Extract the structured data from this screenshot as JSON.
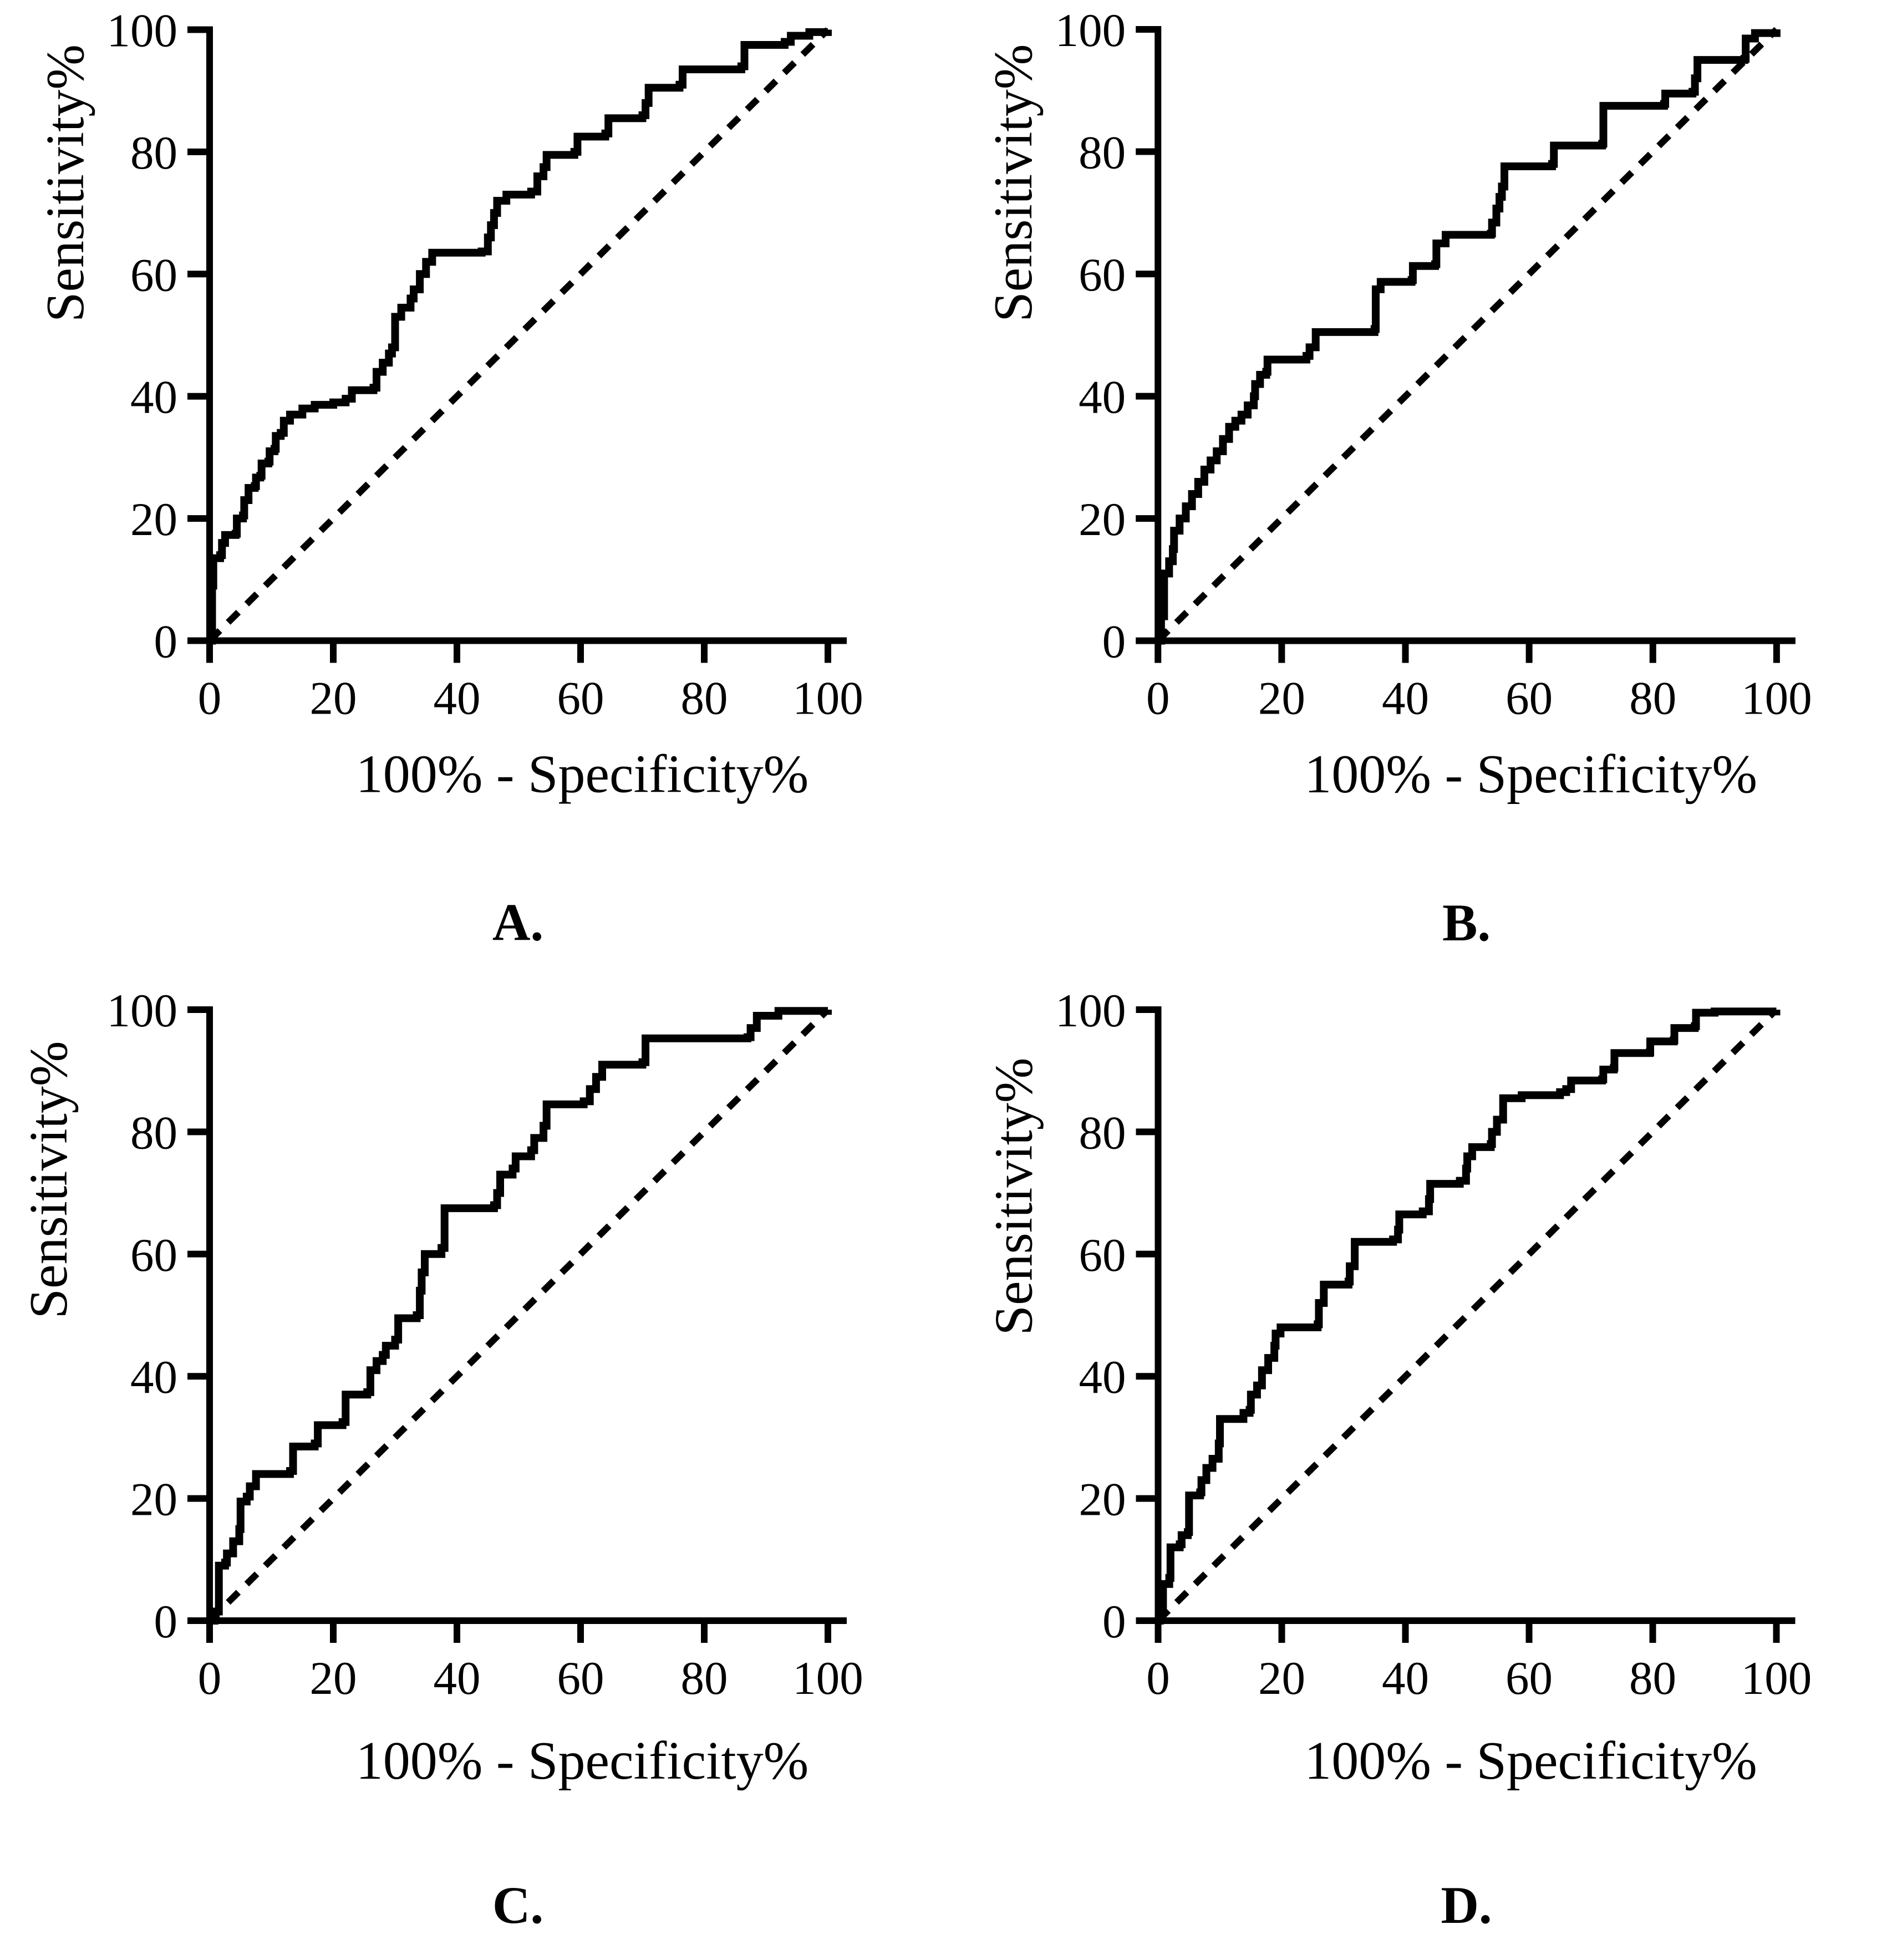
{
  "figure": {
    "background": "#ffffff",
    "ink": "#000000",
    "panel_letters": [
      "A.",
      "B.",
      "C.",
      "D."
    ]
  },
  "chart_data": [
    {
      "type": "line",
      "panel_label": "A.",
      "title": "",
      "xlabel": "100% - Specificity%",
      "ylabel": "Sensitivity%",
      "xlim": [
        0,
        100
      ],
      "ylim": [
        0,
        100
      ],
      "xticks": [
        0,
        20,
        40,
        60,
        80,
        100
      ],
      "yticks": [
        0,
        20,
        40,
        60,
        80,
        100
      ],
      "grid": false,
      "legend_position": "none",
      "series": [
        {
          "name": "roc-curve",
          "draw": "step",
          "line": "solid",
          "color": "#000000",
          "points": [
            [
              0,
              0
            ],
            [
              0.4,
              9
            ],
            [
              0.6,
              13.5
            ],
            [
              1.7,
              14
            ],
            [
              2,
              16
            ],
            [
              2.5,
              17.3
            ],
            [
              4.2,
              17.5
            ],
            [
              4.4,
              20
            ],
            [
              5.4,
              20.5
            ],
            [
              5.6,
              23
            ],
            [
              6.3,
              25
            ],
            [
              7.3,
              25.3
            ],
            [
              7.5,
              26.7
            ],
            [
              8.2,
              27
            ],
            [
              8.4,
              29
            ],
            [
              9.5,
              29.3
            ],
            [
              9.7,
              31
            ],
            [
              10.5,
              31.4
            ],
            [
              10.7,
              33.5
            ],
            [
              11.5,
              34
            ],
            [
              12,
              36
            ],
            [
              13,
              37
            ],
            [
              15,
              38
            ],
            [
              17,
              38.6
            ],
            [
              20,
              39
            ],
            [
              22,
              39.6
            ],
            [
              23,
              41
            ],
            [
              26.5,
              41.4
            ],
            [
              27,
              44
            ],
            [
              28,
              45.5
            ],
            [
              29,
              47
            ],
            [
              29.5,
              48
            ],
            [
              30,
              53
            ],
            [
              31,
              54.5
            ],
            [
              32.5,
              56
            ],
            [
              33,
              57.5
            ],
            [
              34,
              60
            ],
            [
              35,
              62
            ],
            [
              36,
              63.5
            ],
            [
              44,
              63.7
            ],
            [
              45,
              66
            ],
            [
              45.5,
              68
            ],
            [
              46,
              70
            ],
            [
              46.5,
              72
            ],
            [
              48,
              73
            ],
            [
              52,
              73.5
            ],
            [
              53,
              76
            ],
            [
              54,
              77.5
            ],
            [
              54.5,
              79.5
            ],
            [
              59,
              80
            ],
            [
              59.5,
              82.5
            ],
            [
              64,
              83
            ],
            [
              64.5,
              85.5
            ],
            [
              70,
              86
            ],
            [
              70.5,
              88
            ],
            [
              71,
              90.5
            ],
            [
              76,
              91
            ],
            [
              76.5,
              93.5
            ],
            [
              86,
              94
            ],
            [
              86.5,
              97.5
            ],
            [
              93,
              98
            ],
            [
              94,
              99
            ],
            [
              97,
              99.6
            ],
            [
              100,
              100
            ]
          ]
        },
        {
          "name": "chance-diagonal",
          "draw": "line",
          "line": "dashed",
          "color": "#000000",
          "points": [
            [
              0,
              0
            ],
            [
              100,
              100
            ]
          ]
        }
      ]
    },
    {
      "type": "line",
      "panel_label": "B.",
      "title": "",
      "xlabel": "100% - Specificity%",
      "ylabel": "Sensitivity%",
      "xlim": [
        0,
        100
      ],
      "ylim": [
        0,
        100
      ],
      "xticks": [
        0,
        20,
        40,
        60,
        80,
        100
      ],
      "yticks": [
        0,
        20,
        40,
        60,
        80,
        100
      ],
      "grid": false,
      "legend_position": "none",
      "series": [
        {
          "name": "roc-curve",
          "draw": "step",
          "line": "solid",
          "color": "#000000",
          "points": [
            [
              0,
              0
            ],
            [
              0.5,
              4
            ],
            [
              1,
              11
            ],
            [
              1.8,
              13
            ],
            [
              2.4,
              15
            ],
            [
              2.6,
              18
            ],
            [
              3.5,
              20
            ],
            [
              4.5,
              22
            ],
            [
              5.5,
              24
            ],
            [
              6.5,
              26
            ],
            [
              7.5,
              28
            ],
            [
              8.5,
              29.5
            ],
            [
              9.5,
              31
            ],
            [
              10.5,
              33
            ],
            [
              11.5,
              35
            ],
            [
              12.5,
              36
            ],
            [
              13.5,
              37
            ],
            [
              14.5,
              38.5
            ],
            [
              15.5,
              40
            ],
            [
              15.7,
              42
            ],
            [
              16.5,
              43.5
            ],
            [
              17.5,
              44
            ],
            [
              17.7,
              46
            ],
            [
              24,
              46.6
            ],
            [
              24.5,
              48
            ],
            [
              25.5,
              50.5
            ],
            [
              35,
              51
            ],
            [
              35.2,
              57.5
            ],
            [
              36,
              58.7
            ],
            [
              41,
              59
            ],
            [
              41.2,
              61.3
            ],
            [
              44.8,
              61.6
            ],
            [
              45,
              65
            ],
            [
              46.5,
              66.4
            ],
            [
              53.8,
              66.6
            ],
            [
              54,
              68.4
            ],
            [
              54.7,
              70.7
            ],
            [
              55.2,
              72.6
            ],
            [
              55.6,
              74.3
            ],
            [
              56,
              77.6
            ],
            [
              63.7,
              78
            ],
            [
              64,
              81
            ],
            [
              71.8,
              81.3
            ],
            [
              72,
              87.5
            ],
            [
              81.8,
              87.8
            ],
            [
              82,
              89.5
            ],
            [
              86.4,
              89.8
            ],
            [
              86.8,
              92
            ],
            [
              87.2,
              95
            ],
            [
              94.8,
              95.2
            ],
            [
              95,
              98.5
            ],
            [
              96.5,
              99.4
            ],
            [
              100,
              100
            ]
          ]
        },
        {
          "name": "chance-diagonal",
          "draw": "line",
          "line": "dashed",
          "color": "#000000",
          "points": [
            [
              0,
              0
            ],
            [
              100,
              100
            ]
          ]
        }
      ]
    },
    {
      "type": "line",
      "panel_label": "C.",
      "title": "",
      "xlabel": "100% - Specificity%",
      "ylabel": "Sensitivity%",
      "xlim": [
        0,
        100
      ],
      "ylim": [
        0,
        100
      ],
      "xticks": [
        0,
        20,
        40,
        60,
        80,
        100
      ],
      "yticks": [
        0,
        20,
        40,
        60,
        80,
        100
      ],
      "grid": false,
      "legend_position": "none",
      "series": [
        {
          "name": "roc-curve",
          "draw": "step",
          "line": "solid",
          "color": "#000000",
          "points": [
            [
              0,
              0
            ],
            [
              0.8,
              0.5
            ],
            [
              1,
              1.5
            ],
            [
              1.5,
              9
            ],
            [
              2.5,
              9.5
            ],
            [
              2.8,
              11
            ],
            [
              3.8,
              13
            ],
            [
              4.8,
              15
            ],
            [
              5,
              19.5
            ],
            [
              6,
              20.3
            ],
            [
              6.5,
              22
            ],
            [
              7.5,
              24
            ],
            [
              13,
              24.5
            ],
            [
              13.5,
              28.5
            ],
            [
              17,
              29
            ],
            [
              17.5,
              32
            ],
            [
              21.5,
              32.5
            ],
            [
              22,
              37
            ],
            [
              25.5,
              37.4
            ],
            [
              26,
              41
            ],
            [
              27,
              42.5
            ],
            [
              28,
              43.5
            ],
            [
              28.5,
              45
            ],
            [
              30,
              46
            ],
            [
              30.5,
              49.5
            ],
            [
              33.5,
              50
            ],
            [
              34,
              54
            ],
            [
              34.3,
              57
            ],
            [
              34.8,
              60
            ],
            [
              37.5,
              61
            ],
            [
              38,
              67.5
            ],
            [
              46,
              68
            ],
            [
              46.5,
              70
            ],
            [
              47,
              73
            ],
            [
              49,
              74
            ],
            [
              49.5,
              76
            ],
            [
              52,
              77
            ],
            [
              52.5,
              79
            ],
            [
              54,
              81
            ],
            [
              54.5,
              84.5
            ],
            [
              60.5,
              85
            ],
            [
              61.5,
              87
            ],
            [
              62.5,
              89
            ],
            [
              63.5,
              91
            ],
            [
              70,
              91.4
            ],
            [
              70.5,
              95.3
            ],
            [
              87,
              95.5
            ],
            [
              87.5,
              97
            ],
            [
              88.5,
              99
            ],
            [
              92,
              99.8
            ],
            [
              100,
              100
            ]
          ]
        },
        {
          "name": "chance-diagonal",
          "draw": "line",
          "line": "dashed",
          "color": "#000000",
          "points": [
            [
              0,
              0
            ],
            [
              100,
              100
            ]
          ]
        }
      ]
    },
    {
      "type": "line",
      "panel_label": "D.",
      "title": "",
      "xlabel": "100% - Specificity%",
      "ylabel": "Sensitivity%",
      "xlim": [
        0,
        100
      ],
      "ylim": [
        0,
        100
      ],
      "xticks": [
        0,
        20,
        40,
        60,
        80,
        100
      ],
      "yticks": [
        0,
        20,
        40,
        60,
        80,
        100
      ],
      "grid": false,
      "legend_position": "none",
      "series": [
        {
          "name": "roc-curve",
          "draw": "step",
          "line": "solid",
          "color": "#000000",
          "points": [
            [
              0,
              0
            ],
            [
              0.3,
              2
            ],
            [
              0.8,
              6
            ],
            [
              1.8,
              7
            ],
            [
              2,
              12
            ],
            [
              3.5,
              12.5
            ],
            [
              3.8,
              14
            ],
            [
              4.8,
              14.5
            ],
            [
              5,
              20.5
            ],
            [
              6.8,
              21
            ],
            [
              7,
              23
            ],
            [
              7.8,
              25
            ],
            [
              8.8,
              26.5
            ],
            [
              9.8,
              29
            ],
            [
              10,
              33
            ],
            [
              13.8,
              34
            ],
            [
              14.8,
              34.5
            ],
            [
              15,
              37
            ],
            [
              16,
              38.5
            ],
            [
              16.8,
              41
            ],
            [
              17.8,
              43
            ],
            [
              18.8,
              45
            ],
            [
              19,
              47
            ],
            [
              19.8,
              48
            ],
            [
              25.8,
              48.5
            ],
            [
              26,
              52
            ],
            [
              26.8,
              55
            ],
            [
              30.8,
              55.5
            ],
            [
              31,
              58
            ],
            [
              31.8,
              62
            ],
            [
              38,
              62.4
            ],
            [
              38.8,
              64
            ],
            [
              39,
              66.5
            ],
            [
              42.8,
              67
            ],
            [
              43.8,
              69
            ],
            [
              44,
              71.5
            ],
            [
              48.8,
              72
            ],
            [
              49.8,
              74
            ],
            [
              50,
              76
            ],
            [
              50.8,
              77.5
            ],
            [
              53.8,
              78
            ],
            [
              54,
              80
            ],
            [
              54.8,
              82
            ],
            [
              55.8,
              85.5
            ],
            [
              58.8,
              86
            ],
            [
              65,
              86.5
            ],
            [
              66,
              87
            ],
            [
              66.8,
              88.4
            ],
            [
              71.8,
              88.6
            ],
            [
              72,
              90.2
            ],
            [
              73.7,
              90.5
            ],
            [
              73.8,
              92.9
            ],
            [
              79.5,
              93
            ],
            [
              79.6,
              94.8
            ],
            [
              83.4,
              95
            ],
            [
              83.5,
              97
            ],
            [
              86.8,
              97.3
            ],
            [
              87,
              99.5
            ],
            [
              90,
              99.7
            ],
            [
              100,
              100
            ]
          ]
        },
        {
          "name": "chance-diagonal",
          "draw": "line",
          "line": "dashed",
          "color": "#000000",
          "points": [
            [
              0,
              0
            ],
            [
              100,
              100
            ]
          ]
        }
      ]
    }
  ]
}
